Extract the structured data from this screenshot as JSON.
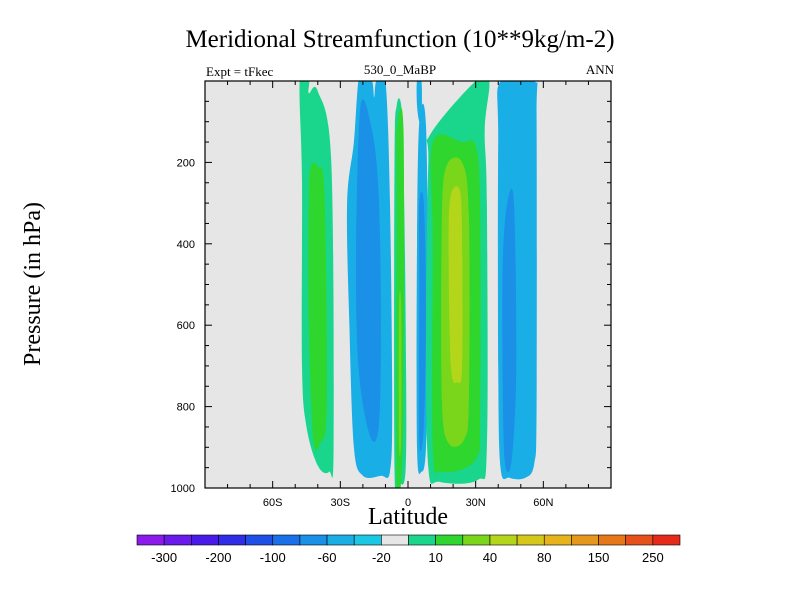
{
  "chart_data": {
    "type": "heatmap",
    "title": "Meridional Streamfunction (10**9kg/m-2)",
    "subtitle_left": "Expt = tFkec",
    "subtitle_center": "530_0_MaBP",
    "subtitle_right": "ANN",
    "xlabel": "Latitude",
    "ylabel": "Pressure (in hPa)",
    "xlim": [
      -90,
      90
    ],
    "ylim": [
      1000,
      0
    ],
    "x_ticks": [
      {
        "value": -60,
        "label": "60S"
      },
      {
        "value": -30,
        "label": "30S"
      },
      {
        "value": 0,
        "label": "0"
      },
      {
        "value": 30,
        "label": "30N"
      },
      {
        "value": 60,
        "label": "60N"
      }
    ],
    "y_ticks": [
      {
        "value": 200,
        "label": "200"
      },
      {
        "value": 400,
        "label": "400"
      },
      {
        "value": 600,
        "label": "600"
      },
      {
        "value": 800,
        "label": "800"
      },
      {
        "value": 1000,
        "label": "1000"
      }
    ],
    "background_color": "#e6e6e6",
    "colorbar": {
      "colors": [
        "#8c1aeb",
        "#6a1aeb",
        "#4a1ae8",
        "#2f2ee6",
        "#1e4fe6",
        "#1a70e8",
        "#1a90e6",
        "#1aaee6",
        "#1ac8e6",
        "#e6e6e6",
        "#1ad68c",
        "#2ed62e",
        "#7ad61a",
        "#b4d61a",
        "#d6c81a",
        "#e6b41a",
        "#e6961a",
        "#e6781a",
        "#e6501a",
        "#e62a1a"
      ],
      "labels": [
        "-300",
        "-200",
        "-100",
        "-60",
        "-20",
        "10",
        "40",
        "80",
        "150",
        "250"
      ]
    },
    "regions": [
      {
        "level": 20,
        "color": "#1ad68c",
        "path": [
          [
            -48,
            0
          ],
          [
            -44,
            0
          ],
          [
            -44,
            30
          ],
          [
            -40,
            25
          ],
          [
            -34,
            200
          ],
          [
            -33,
            900
          ],
          [
            -35,
            960
          ],
          [
            -40,
            945
          ],
          [
            -45,
            850
          ],
          [
            -47,
            700
          ],
          [
            -47,
            250
          ]
        ]
      },
      {
        "level": 40,
        "color": "#2ed62e",
        "path": [
          [
            -43,
            210
          ],
          [
            -40,
            210
          ],
          [
            -37,
            280
          ],
          [
            -36,
            800
          ],
          [
            -39,
            890
          ],
          [
            -42,
            880
          ],
          [
            -44,
            600
          ],
          [
            -44,
            290
          ]
        ]
      },
      {
        "level": -20,
        "color": "#1aaee6",
        "path": [
          [
            -22,
            0
          ],
          [
            -20,
            0
          ],
          [
            -16,
            0
          ],
          [
            -15,
            40
          ],
          [
            -14,
            0
          ],
          [
            -10,
            0
          ],
          [
            -8,
            300
          ],
          [
            -7,
            800
          ],
          [
            -8,
            960
          ],
          [
            -12,
            970
          ],
          [
            -20,
            970
          ],
          [
            -24,
            900
          ],
          [
            -26,
            600
          ],
          [
            -27,
            300
          ],
          [
            -24,
            150
          ]
        ]
      },
      {
        "level": -60,
        "color": "#1a90e6",
        "path": [
          [
            -21,
            60
          ],
          [
            -16,
            120
          ],
          [
            -13,
            280
          ],
          [
            -12,
            600
          ],
          [
            -13,
            850
          ],
          [
            -17,
            870
          ],
          [
            -22,
            700
          ],
          [
            -23,
            400
          ]
        ]
      },
      {
        "level": 20,
        "color": "#1ad68c",
        "path": [
          [
            -5,
            60
          ],
          [
            -3,
            60
          ],
          [
            -2,
            200
          ],
          [
            -1,
            600
          ],
          [
            -1,
            950
          ],
          [
            -4,
            985
          ],
          [
            -6,
            950
          ],
          [
            -6,
            200
          ]
        ]
      },
      {
        "level": 40,
        "color": "#2ed62e",
        "path": [
          [
            -5,
            120
          ],
          [
            -2,
            120
          ],
          [
            -2,
            750
          ],
          [
            -3,
            980
          ],
          [
            -5,
            980
          ],
          [
            -5,
            300
          ]
        ]
      },
      {
        "level": 80,
        "color": "#7ad61a",
        "path": [
          [
            -4,
            550
          ],
          [
            -3,
            560
          ],
          [
            -3,
            870
          ],
          [
            -4,
            890
          ]
        ]
      },
      {
        "level": -20,
        "color": "#1aaee6",
        "path": [
          [
            4,
            0
          ],
          [
            6,
            0
          ],
          [
            6,
            90
          ],
          [
            5,
            100
          ],
          [
            4,
            60
          ]
        ]
      },
      {
        "level": -20,
        "color": "#1aaee6",
        "path": [
          [
            5,
            100
          ],
          [
            8,
            110
          ],
          [
            9,
            600
          ],
          [
            8,
            900
          ],
          [
            6,
            960
          ],
          [
            4,
            900
          ],
          [
            4,
            400
          ]
        ]
      },
      {
        "level": -60,
        "color": "#1a90e6",
        "path": [
          [
            5,
            300
          ],
          [
            7,
            300
          ],
          [
            8,
            560
          ],
          [
            7,
            850
          ],
          [
            5,
            880
          ],
          [
            5,
            500
          ]
        ]
      },
      {
        "level": 20,
        "color": "#1ad68c",
        "path": [
          [
            10,
            130
          ],
          [
            30,
            0
          ],
          [
            36,
            0
          ],
          [
            34,
            120
          ],
          [
            35,
            300
          ],
          [
            35,
            900
          ],
          [
            31,
            980
          ],
          [
            14,
            985
          ],
          [
            9,
            950
          ],
          [
            8,
            600
          ],
          [
            9,
            200
          ]
        ]
      },
      {
        "level": 40,
        "color": "#2ed62e",
        "path": [
          [
            11,
            150
          ],
          [
            24,
            150
          ],
          [
            30,
            160
          ],
          [
            32,
            300
          ],
          [
            32,
            800
          ],
          [
            30,
            930
          ],
          [
            15,
            960
          ],
          [
            11,
            900
          ],
          [
            11,
            400
          ]
        ]
      },
      {
        "level": 80,
        "color": "#7ad61a",
        "path": [
          [
            17,
            210
          ],
          [
            24,
            200
          ],
          [
            27,
            330
          ],
          [
            27,
            780
          ],
          [
            25,
            880
          ],
          [
            18,
            890
          ],
          [
            15,
            780
          ],
          [
            15,
            350
          ]
        ]
      },
      {
        "level": 150,
        "color": "#b4d61a",
        "path": [
          [
            19,
            280
          ],
          [
            23,
            270
          ],
          [
            24,
            400
          ],
          [
            24,
            700
          ],
          [
            22,
            740
          ],
          [
            19,
            700
          ],
          [
            18,
            400
          ]
        ]
      },
      {
        "level": -20,
        "color": "#1aaee6",
        "path": [
          [
            41,
            0
          ],
          [
            56,
            0
          ],
          [
            57,
            100
          ],
          [
            57,
            800
          ],
          [
            56,
            940
          ],
          [
            52,
            975
          ],
          [
            45,
            975
          ],
          [
            41,
            950
          ],
          [
            40,
            700
          ],
          [
            40,
            150
          ]
        ]
      },
      {
        "level": -60,
        "color": "#1a90e6",
        "path": [
          [
            44,
            300
          ],
          [
            47,
            300
          ],
          [
            48,
            700
          ],
          [
            46,
            930
          ],
          [
            43,
            940
          ],
          [
            42,
            750
          ],
          [
            42,
            450
          ]
        ]
      }
    ]
  }
}
